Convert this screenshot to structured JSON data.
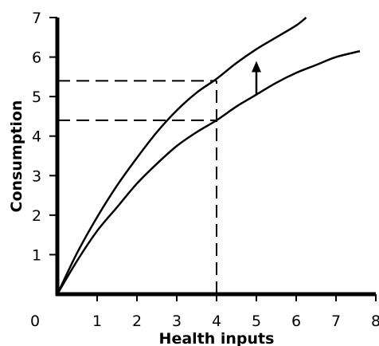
{
  "chart_data": {
    "type": "line",
    "title": "",
    "xlabel": "Health inputs",
    "ylabel": "Consumption",
    "xlim": [
      0,
      8
    ],
    "ylim": [
      0,
      7
    ],
    "x_ticks": [
      "0",
      "1",
      "2",
      "3",
      "4",
      "5",
      "6",
      "7",
      "8"
    ],
    "y_ticks": [
      "1",
      "2",
      "3",
      "4",
      "5",
      "6",
      "7"
    ],
    "grid": false,
    "legend": "none",
    "series": [
      {
        "x": [
          0,
          0.5,
          1,
          1.5,
          2,
          2.5,
          3,
          3.5,
          4,
          4.5,
          5,
          5.5,
          6,
          6.25
        ],
        "y": [
          0,
          1.05,
          1.95,
          2.75,
          3.45,
          4.1,
          4.65,
          5.1,
          5.45,
          5.85,
          6.2,
          6.5,
          6.8,
          7.0
        ]
      },
      {
        "x": [
          0,
          0.5,
          1,
          1.5,
          2,
          2.5,
          3,
          3.5,
          4,
          4.5,
          5,
          5.5,
          6,
          6.5,
          7,
          7.6
        ],
        "y": [
          0,
          0.85,
          1.6,
          2.2,
          2.8,
          3.3,
          3.75,
          4.1,
          4.4,
          4.75,
          5.05,
          5.35,
          5.6,
          5.8,
          6.0,
          6.15
        ]
      }
    ],
    "reference_lines": [
      {
        "from": [
          0,
          5.4
        ],
        "to": [
          4,
          5.4
        ]
      },
      {
        "from": [
          0,
          4.4
        ],
        "to": [
          4,
          4.4
        ]
      },
      {
        "from": [
          4,
          0
        ],
        "to": [
          4,
          5.4
        ]
      }
    ],
    "annotations": [
      {
        "type": "arrow",
        "from": [
          5,
          5.05
        ],
        "to": [
          5,
          5.9
        ]
      }
    ]
  }
}
